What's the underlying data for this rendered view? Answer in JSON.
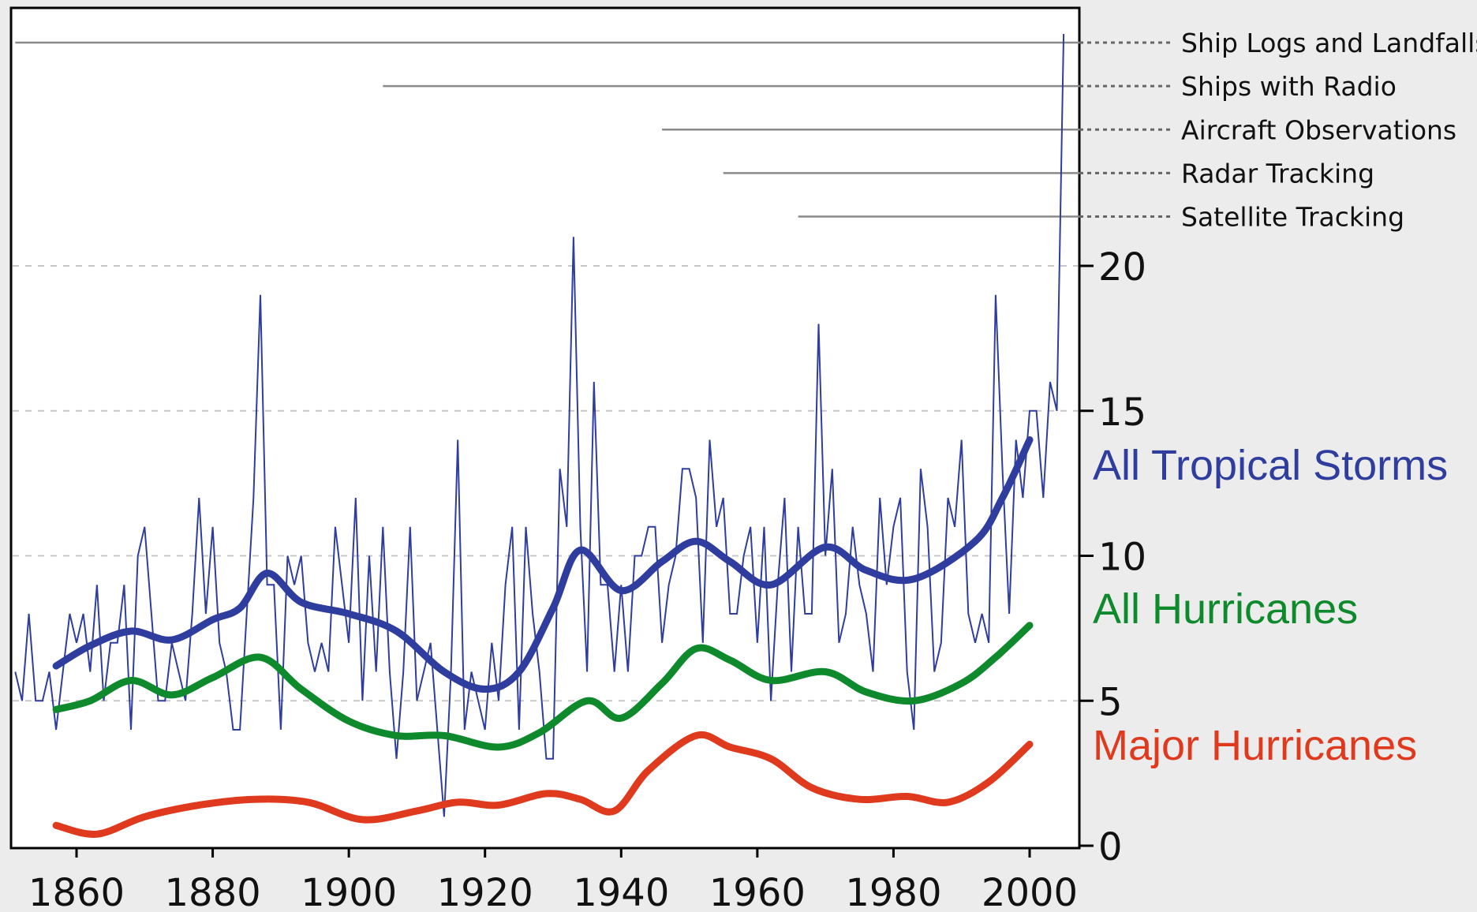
{
  "chart_data": {
    "type": "line",
    "title": "",
    "xlabel": "",
    "ylabel": "",
    "xlim": [
      1851,
      2006
    ],
    "ylim": [
      0,
      25
    ],
    "x_ticks": [
      1860,
      1880,
      1900,
      1920,
      1940,
      1960,
      1980,
      2000
    ],
    "x_tick_labels": [
      "1860",
      "1880",
      "1900",
      "1920",
      "1940",
      "1960",
      "1980",
      "2000"
    ],
    "y_ticks": [
      0,
      5,
      10,
      15,
      20
    ],
    "y_tick_labels": [
      "0",
      "5",
      "10",
      "15",
      "20"
    ],
    "grid": "horizontal dashed",
    "colors": {
      "storms": "#2f3d9e",
      "hurricanes": "#0e8a2c",
      "major": "#e03a1e",
      "obs": "#8a8a8a"
    },
    "observation_eras": [
      {
        "label": "Ship Logs and Landfalls",
        "start": 1851,
        "level": 27.7
      },
      {
        "label": "Ships with Radio",
        "start": 1905,
        "level": 26.2
      },
      {
        "label": "Aircraft Observations",
        "start": 1946,
        "level": 24.7
      },
      {
        "label": "Radar Tracking",
        "start": 1955,
        "level": 23.2
      },
      {
        "label": "Satellite Tracking",
        "start": 1966,
        "level": 21.7
      }
    ],
    "series": [
      {
        "name": "All Tropical Storms",
        "color": "#2f3d9e",
        "smooth_x": [
          1857,
          1862,
          1868,
          1874,
          1880,
          1884,
          1888,
          1893,
          1900,
          1907,
          1914,
          1920,
          1925,
          1930,
          1934,
          1940,
          1946,
          1951,
          1956,
          1962,
          1970,
          1976,
          1983,
          1992,
          1996,
          2000
        ],
        "smooth_y": [
          6.2,
          6.9,
          7.4,
          7.1,
          7.8,
          8.2,
          9.4,
          8.4,
          8.0,
          7.4,
          6.0,
          5.4,
          6.0,
          8.2,
          10.2,
          8.8,
          9.8,
          10.5,
          9.8,
          9.0,
          10.3,
          9.5,
          9.2,
          10.5,
          12.0,
          14.0
        ],
        "annual_x": [
          1851,
          1852,
          1853,
          1854,
          1855,
          1856,
          1857,
          1858,
          1859,
          1860,
          1861,
          1862,
          1863,
          1864,
          1865,
          1866,
          1867,
          1868,
          1869,
          1870,
          1871,
          1872,
          1873,
          1874,
          1875,
          1876,
          1877,
          1878,
          1879,
          1880,
          1881,
          1882,
          1883,
          1884,
          1885,
          1886,
          1887,
          1888,
          1889,
          1890,
          1891,
          1892,
          1893,
          1894,
          1895,
          1896,
          1897,
          1898,
          1899,
          1900,
          1901,
          1902,
          1903,
          1904,
          1905,
          1906,
          1907,
          1908,
          1909,
          1910,
          1911,
          1912,
          1913,
          1914,
          1915,
          1916,
          1917,
          1918,
          1919,
          1920,
          1921,
          1922,
          1923,
          1924,
          1925,
          1926,
          1927,
          1928,
          1929,
          1930,
          1931,
          1932,
          1933,
          1934,
          1935,
          1936,
          1937,
          1938,
          1939,
          1940,
          1941,
          1942,
          1943,
          1944,
          1945,
          1946,
          1947,
          1948,
          1949,
          1950,
          1951,
          1952,
          1953,
          1954,
          1955,
          1956,
          1957,
          1958,
          1959,
          1960,
          1961,
          1962,
          1963,
          1964,
          1965,
          1966,
          1967,
          1968,
          1969,
          1970,
          1971,
          1972,
          1973,
          1974,
          1975,
          1976,
          1977,
          1978,
          1979,
          1980,
          1981,
          1982,
          1983,
          1984,
          1985,
          1986,
          1987,
          1988,
          1989,
          1990,
          1991,
          1992,
          1993,
          1994,
          1995,
          1996,
          1997,
          1998,
          1999,
          2000,
          2001,
          2002,
          2003,
          2004,
          2005
        ],
        "annual_y": [
          6,
          5,
          8,
          5,
          5,
          6,
          4,
          6,
          8,
          7,
          8,
          6,
          9,
          5,
          7,
          7,
          9,
          4,
          10,
          11,
          8,
          5,
          5,
          7,
          6,
          5,
          8,
          12,
          8,
          11,
          7,
          6,
          4,
          4,
          8,
          12,
          19,
          9,
          9,
          4,
          10,
          9,
          10,
          7,
          6,
          7,
          6,
          11,
          9,
          7,
          12,
          5,
          10,
          6,
          11,
          6,
          3,
          6,
          11,
          5,
          6,
          7,
          4,
          1,
          6,
          14,
          4,
          6,
          5,
          4,
          7,
          5,
          9,
          11,
          4,
          11,
          8,
          6,
          3,
          3,
          13,
          11,
          21,
          11,
          6,
          16,
          9,
          9,
          6,
          9,
          6,
          10,
          10,
          11,
          11,
          7,
          9,
          10,
          13,
          13,
          12,
          7,
          14,
          11,
          12,
          8,
          8,
          10,
          11,
          7,
          11,
          5,
          9,
          12,
          6,
          11,
          8,
          8,
          18,
          10,
          13,
          7,
          8,
          11,
          9,
          8,
          6,
          12,
          9,
          11,
          12,
          6,
          4,
          13,
          11,
          6,
          7,
          12,
          11,
          14,
          8,
          7,
          8,
          7,
          19,
          13,
          8,
          14,
          12,
          15,
          15,
          12,
          16,
          15,
          28
        ]
      },
      {
        "name": "All Hurricanes",
        "color": "#0e8a2c",
        "smooth_x": [
          1857,
          1862,
          1868,
          1874,
          1880,
          1887,
          1893,
          1900,
          1907,
          1914,
          1922,
          1928,
          1935,
          1940,
          1946,
          1951,
          1956,
          1962,
          1970,
          1976,
          1983,
          1990,
          1995,
          2000
        ],
        "smooth_y": [
          4.7,
          5.0,
          5.7,
          5.2,
          5.8,
          6.5,
          5.4,
          4.3,
          3.8,
          3.8,
          3.4,
          3.9,
          5.0,
          4.4,
          5.6,
          6.8,
          6.4,
          5.7,
          6.0,
          5.3,
          5.0,
          5.6,
          6.5,
          7.6
        ]
      },
      {
        "name": "Major Hurricanes",
        "color": "#e03a1e",
        "smooth_x": [
          1857,
          1863,
          1870,
          1878,
          1886,
          1894,
          1902,
          1910,
          1916,
          1922,
          1929,
          1934,
          1939,
          1944,
          1951,
          1956,
          1962,
          1968,
          1975,
          1982,
          1988,
          1994,
          2000
        ],
        "smooth_y": [
          0.7,
          0.4,
          1.0,
          1.4,
          1.6,
          1.5,
          0.9,
          1.2,
          1.5,
          1.4,
          1.8,
          1.6,
          1.2,
          2.6,
          3.8,
          3.4,
          3.0,
          2.0,
          1.6,
          1.7,
          1.5,
          2.2,
          3.5
        ]
      }
    ]
  }
}
